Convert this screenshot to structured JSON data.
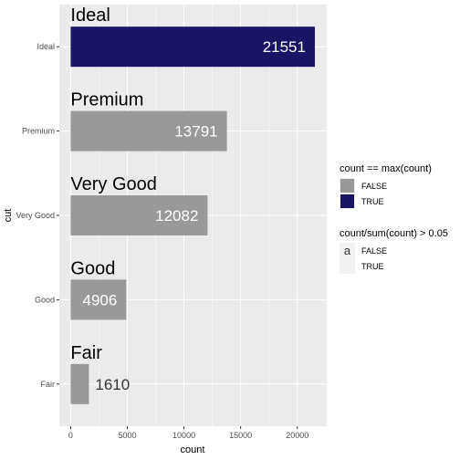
{
  "chart_data": {
    "type": "bar",
    "orientation": "horizontal",
    "categories": [
      "Ideal",
      "Premium",
      "Very Good",
      "Good",
      "Fair"
    ],
    "values": [
      21551,
      13791,
      12082,
      4906,
      1610
    ],
    "is_max": [
      true,
      false,
      false,
      false,
      false
    ],
    "label_inside": [
      true,
      true,
      true,
      true,
      false
    ],
    "xlabel": "count",
    "ylabel": "cut",
    "xlim": [
      -1000,
      22600
    ],
    "xticks": [
      0,
      5000,
      10000,
      15000,
      20000
    ],
    "xtick_labels": [
      "0",
      "5000",
      "10000",
      "15000",
      "20000"
    ],
    "grid": true,
    "legend_position": "right",
    "legends": [
      {
        "title": "count == max(count)",
        "entries": [
          {
            "label": "FALSE",
            "color": "#999999"
          },
          {
            "label": "TRUE",
            "color": "#1a1464"
          }
        ]
      },
      {
        "title": "count/sum(count) > 0.05",
        "key_glyph": "a",
        "entries": [
          {
            "label": "FALSE"
          },
          {
            "label": "TRUE"
          }
        ]
      }
    ],
    "colors": {
      "bar_false": "#999999",
      "bar_true": "#1a1464",
      "panel": "#ebebeb",
      "grid": "#ffffff",
      "label_inside": "#ffffff",
      "label_outside": "#333333"
    }
  }
}
